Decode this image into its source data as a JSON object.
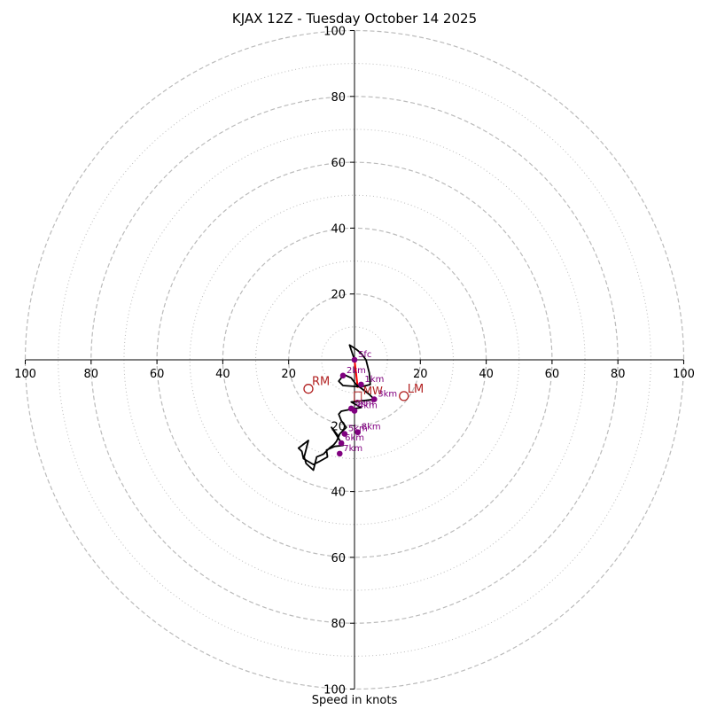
{
  "chart_data": {
    "type": "hodograph",
    "title": "KJAX 12Z - Tuesday October 14 2025",
    "xlabel": "Speed in knots",
    "units": "knots",
    "range": [
      -100,
      100
    ],
    "ring_major": [
      20,
      40,
      60,
      80,
      100
    ],
    "ring_minor": [
      10,
      30,
      50,
      70,
      90
    ],
    "x_tick_labels": [
      "100",
      "80",
      "60",
      "40",
      "20",
      "20",
      "40",
      "60",
      "80",
      "100"
    ],
    "x_tick_values": [
      -100,
      -80,
      -60,
      -40,
      -20,
      20,
      40,
      60,
      80,
      100
    ],
    "y_tick_labels": [
      "100",
      "80",
      "60",
      "40",
      "20",
      "20",
      "40",
      "60",
      "80",
      "100"
    ],
    "y_tick_values": [
      100,
      80,
      60,
      40,
      20,
      -20,
      -40,
      -60,
      -80,
      -100
    ],
    "colors": {
      "trace": "#000000",
      "heights": "#800080",
      "motion": "#b22222",
      "shear": "#ff0000",
      "grid": "#bbbbbb"
    },
    "trace": [
      [
        0,
        0
      ],
      [
        -1.5,
        4.5
      ],
      [
        0.5,
        3.2
      ],
      [
        2,
        2
      ],
      [
        3.5,
        0
      ],
      [
        4.5,
        -4
      ],
      [
        4.8,
        -7.5
      ],
      [
        2,
        -8.2
      ],
      [
        -3.5,
        -7.8
      ],
      [
        -4.8,
        -6.5
      ],
      [
        -3.2,
        -4.5
      ],
      [
        -1,
        -5.5
      ],
      [
        0.5,
        -7.5
      ],
      [
        2.5,
        -9
      ],
      [
        4.5,
        -10.5
      ],
      [
        6,
        -12
      ],
      [
        -1,
        -12.8
      ],
      [
        2,
        -14.5
      ],
      [
        -1,
        -15
      ],
      [
        -4,
        -15.6
      ],
      [
        -4.8,
        -16.5
      ],
      [
        -4,
        -18.5
      ],
      [
        -2.5,
        -20.5
      ],
      [
        -3.5,
        -21.5
      ],
      [
        -4.5,
        -22.5
      ],
      [
        -4.8,
        -23.3
      ],
      [
        -7,
        -20.5
      ],
      [
        -3.5,
        -26
      ],
      [
        -6,
        -26.3
      ],
      [
        -8.5,
        -27.4
      ],
      [
        -8.2,
        -29.5
      ],
      [
        -10.5,
        -30.8
      ],
      [
        -12.5,
        -31.8
      ],
      [
        -15.5,
        -30
      ],
      [
        -16,
        -27.8
      ],
      [
        -17,
        -26.8
      ],
      [
        -14,
        -24.5
      ],
      [
        -14.5,
        -26.5
      ],
      [
        -15.3,
        -29.5
      ],
      [
        -14.7,
        -31.5
      ],
      [
        -12.5,
        -33.5
      ],
      [
        -11.5,
        -29.5
      ],
      [
        -9.5,
        -28.7
      ],
      [
        -7.5,
        -26.7
      ],
      [
        -6.3,
        -25.8
      ],
      [
        -5.5,
        -24.8
      ],
      [
        -4.8,
        -23.3
      ]
    ],
    "height_points": [
      {
        "label": "Sfc",
        "u": 0,
        "v": 0
      },
      {
        "label": "1km",
        "u": 2,
        "v": -7.5
      },
      {
        "label": "2km",
        "u": -3.5,
        "v": -4.8
      },
      {
        "label": "3km",
        "u": 6,
        "v": -12
      },
      {
        "label": "4km",
        "u": 0,
        "v": -15.5
      },
      {
        "label": "5km",
        "u": -3,
        "v": -22.5
      },
      {
        "label": "6km",
        "u": -4,
        "v": -25.3
      },
      {
        "label": "7km",
        "u": -4.5,
        "v": -28.5
      },
      {
        "label": "8km",
        "u": 1,
        "v": -22
      },
      {
        "label": "9km",
        "u": -1,
        "v": -14.8
      }
    ],
    "storm_motion": [
      {
        "label": "RM",
        "u": -14,
        "v": -8.8
      },
      {
        "label": "LM",
        "u": 15,
        "v": -11
      },
      {
        "label": "MW",
        "u": 1,
        "v": -10
      }
    ],
    "shear_vector": {
      "from": [
        0,
        0
      ],
      "to": [
        1,
        -8.5
      ]
    }
  }
}
